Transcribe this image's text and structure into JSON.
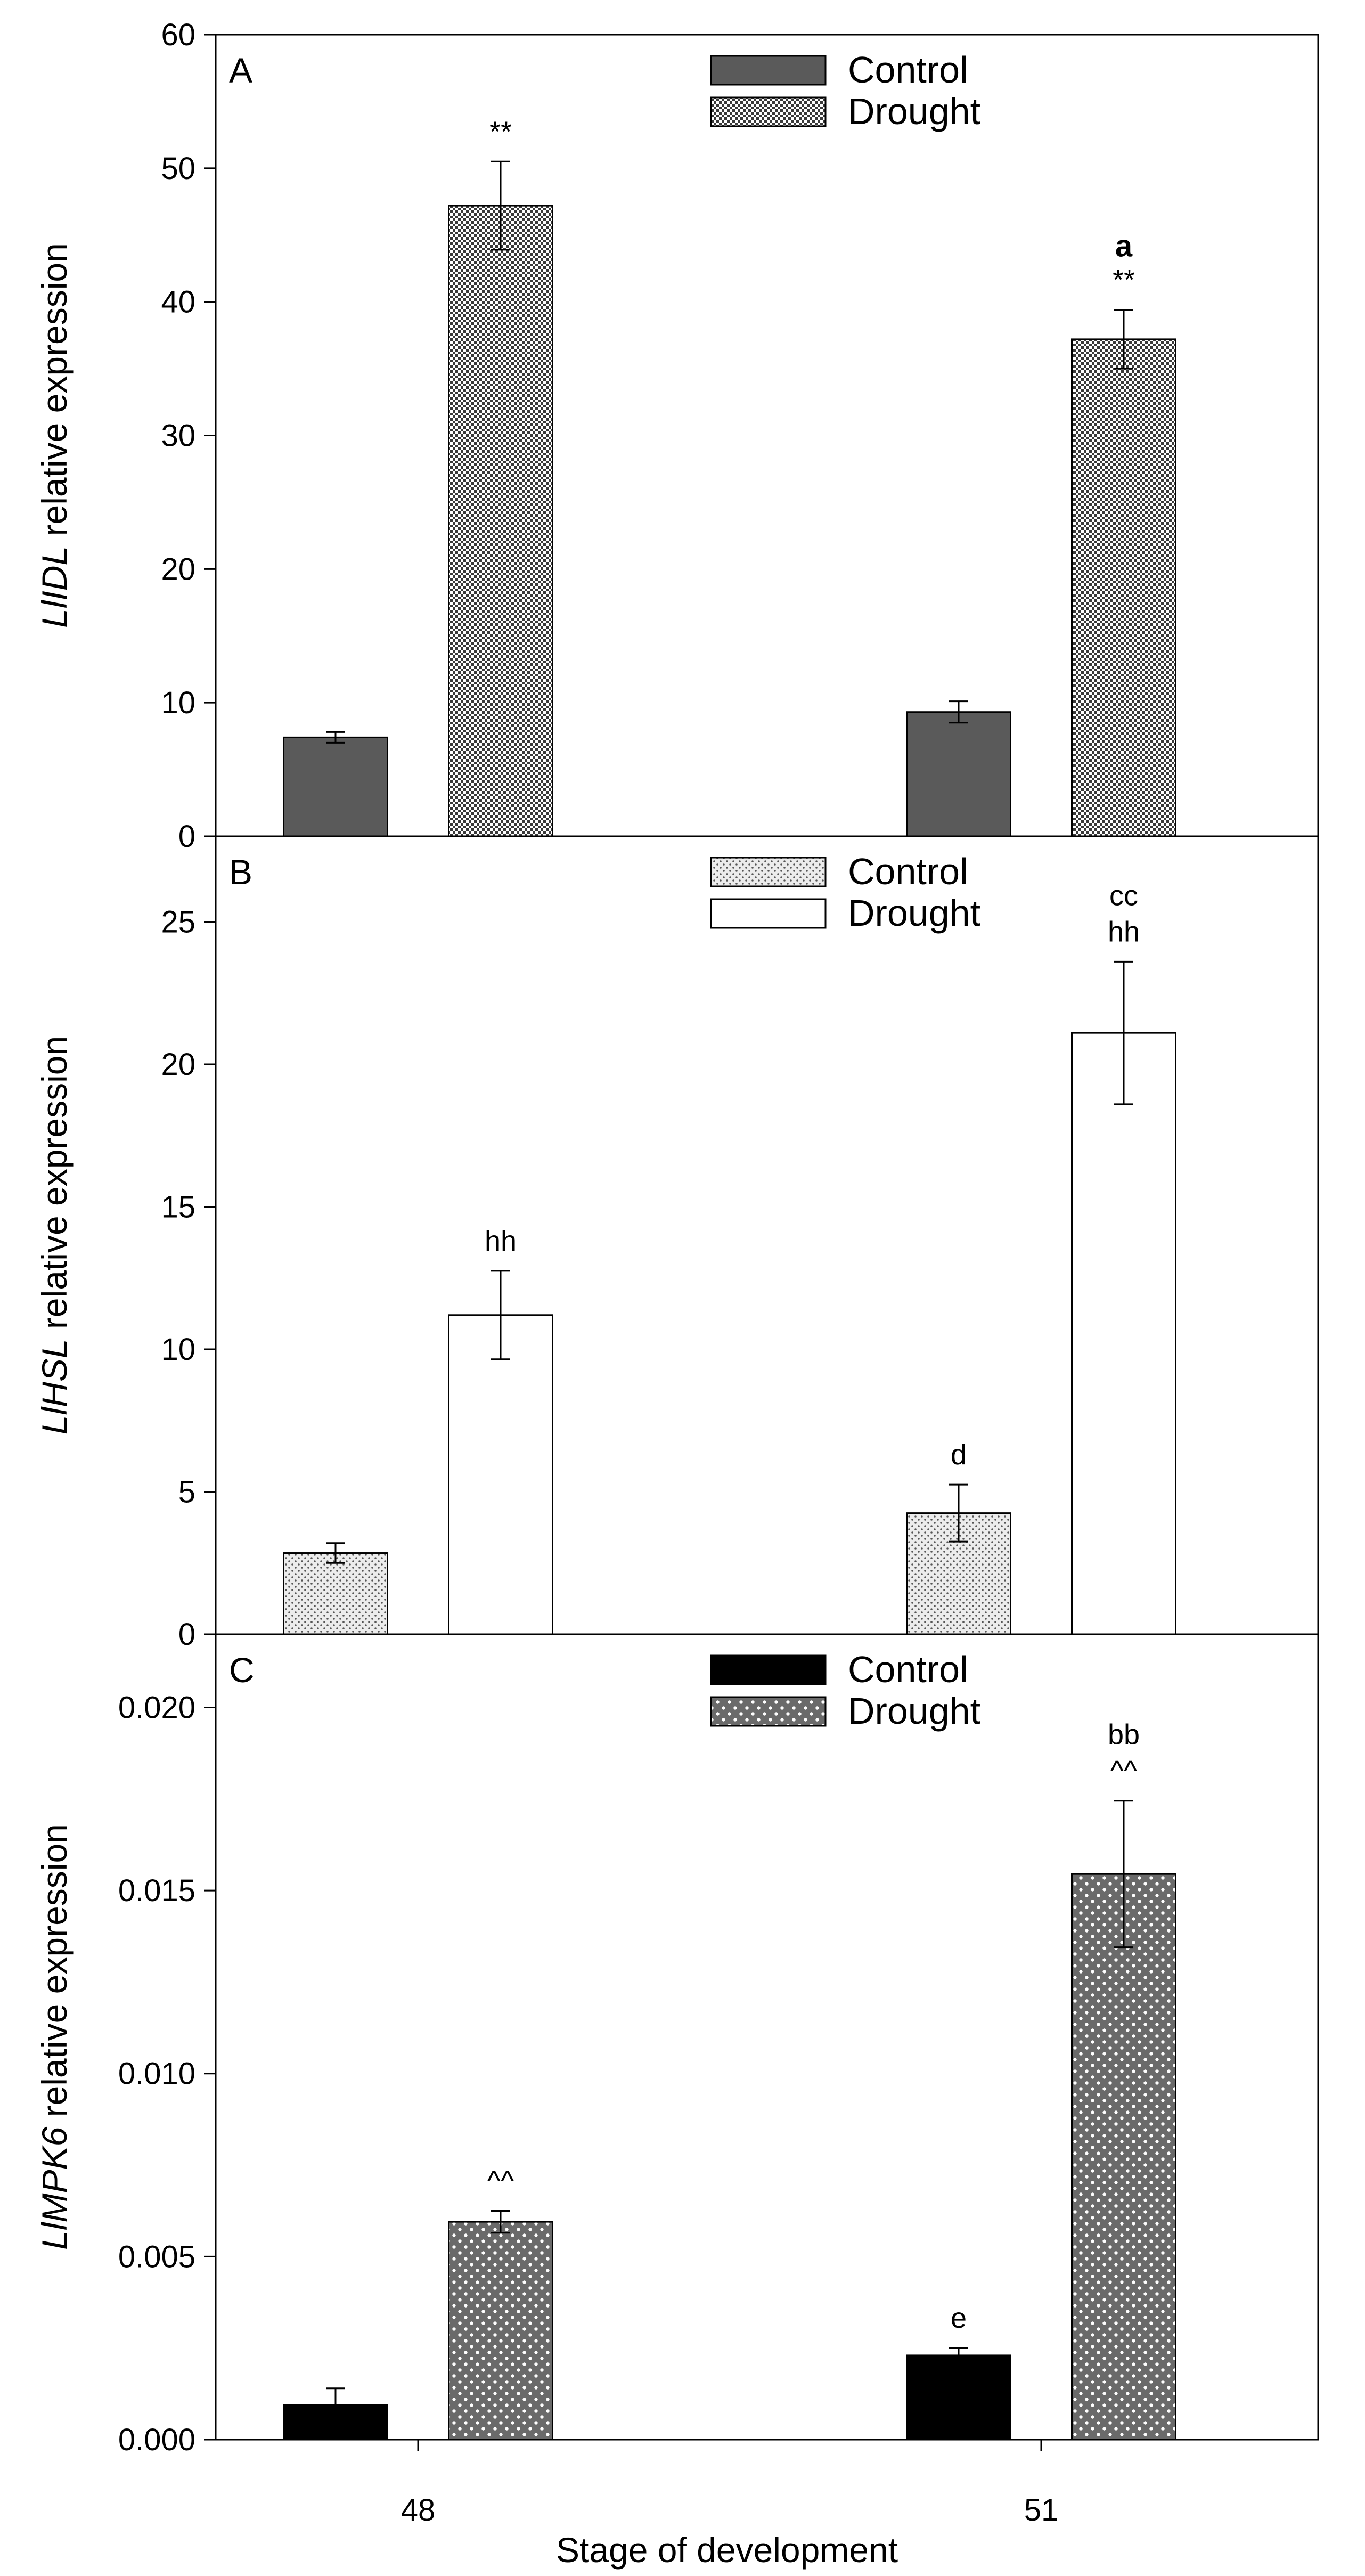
{
  "xlabel": "Stage of development",
  "x_tick_labels": [
    "48",
    "51"
  ],
  "colors": {
    "dark_gray": "#5a5a5a",
    "black": "#000000",
    "white": "#ffffff"
  },
  "chart_data": [
    {
      "type": "bar",
      "panel": "A",
      "ylabel_italic": "LlIDL",
      "ylabel_rest": " relative expression",
      "categories": [
        "48",
        "51"
      ],
      "ylim": [
        0,
        60
      ],
      "yticks": [
        0,
        10,
        20,
        30,
        40,
        50,
        60
      ],
      "ytick_labels": [
        "0",
        "10",
        "20",
        "30",
        "40",
        "50",
        "60"
      ],
      "legend": "top-center",
      "series": [
        {
          "name": "Control",
          "fill": "dark-gray",
          "values": [
            7.4,
            9.3
          ],
          "errors": [
            0.4,
            0.8
          ],
          "annotations": [
            "",
            ""
          ]
        },
        {
          "name": "Drought",
          "fill": "checker",
          "values": [
            47.2,
            37.2
          ],
          "errors": [
            3.3,
            2.2
          ],
          "annotations": [
            "**",
            "**"
          ],
          "annotations_bold": [
            "",
            "a"
          ]
        }
      ]
    },
    {
      "type": "bar",
      "panel": "B",
      "ylabel_italic": "LlHSL",
      "ylabel_rest": " relative expression",
      "categories": [
        "48",
        "51"
      ],
      "ylim": [
        0,
        28
      ],
      "yticks": [
        0,
        5,
        10,
        15,
        20,
        25
      ],
      "ytick_labels": [
        "0",
        "5",
        "10",
        "15",
        "20",
        "25"
      ],
      "legend": "top-center",
      "series": [
        {
          "name": "Control",
          "fill": "stipple",
          "values": [
            2.85,
            4.25
          ],
          "errors": [
            0.35,
            1.0
          ],
          "annotations": [
            "",
            "d"
          ]
        },
        {
          "name": "Drought",
          "fill": "white",
          "values": [
            11.2,
            21.1
          ],
          "errors": [
            1.55,
            2.5
          ],
          "annotations": [
            "hh",
            "hh"
          ],
          "annotations_top": [
            "",
            "cc"
          ]
        }
      ]
    },
    {
      "type": "bar",
      "panel": "C",
      "ylabel_italic": "LlMPK6",
      "ylabel_rest": " relative expression",
      "categories": [
        "48",
        "51"
      ],
      "ylim": [
        0,
        0.022
      ],
      "yticks": [
        0,
        0.005,
        0.01,
        0.015,
        0.02
      ],
      "ytick_labels": [
        "0.000",
        "0.005",
        "0.010",
        "0.015",
        "0.020"
      ],
      "legend": "top-center",
      "series": [
        {
          "name": "Control",
          "fill": "black",
          "values": [
            0.00095,
            0.0023
          ],
          "errors": [
            0.00045,
            0.0002
          ],
          "annotations": [
            "",
            "e"
          ]
        },
        {
          "name": "Drought",
          "fill": "white-dots",
          "values": [
            0.00595,
            0.01545
          ],
          "errors": [
            0.0003,
            0.002
          ],
          "annotations": [
            "^^",
            "^^"
          ],
          "annotations_top": [
            "",
            "bb"
          ]
        }
      ]
    }
  ]
}
